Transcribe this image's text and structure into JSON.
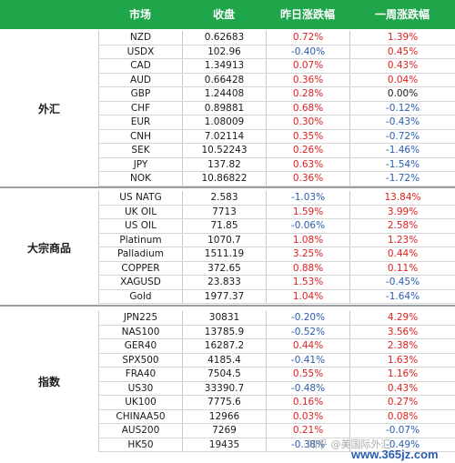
{
  "colors": {
    "header_bg": "#1fa64a",
    "up": "#e02020",
    "down": "#2a5db0",
    "neutral": "#1a1a1a"
  },
  "headers": {
    "market": "市场",
    "close": "收盘",
    "daily": "昨日涨跌幅",
    "weekly": "一周涨跌幅"
  },
  "groups": [
    {
      "label": "外汇",
      "rows": [
        {
          "market": "NZD",
          "close": "0.62683",
          "daily": "0.72%",
          "weekly": "1.39%"
        },
        {
          "market": "USDX",
          "close": "102.96",
          "daily": "-0.40%",
          "weekly": "0.45%"
        },
        {
          "market": "CAD",
          "close": "1.34913",
          "daily": "0.07%",
          "weekly": "0.43%"
        },
        {
          "market": "AUD",
          "close": "0.66428",
          "daily": "0.36%",
          "weekly": "0.04%"
        },
        {
          "market": "GBP",
          "close": "1.24408",
          "daily": "0.28%",
          "weekly": "0.00%"
        },
        {
          "market": "CHF",
          "close": "0.89881",
          "daily": "0.68%",
          "weekly": "-0.12%"
        },
        {
          "market": "EUR",
          "close": "1.08009",
          "daily": "0.30%",
          "weekly": "-0.43%"
        },
        {
          "market": "CNH",
          "close": "7.02114",
          "daily": "0.35%",
          "weekly": "-0.72%"
        },
        {
          "market": "SEK",
          "close": "10.52243",
          "daily": "0.26%",
          "weekly": "-1.46%"
        },
        {
          "market": "JPY",
          "close": "137.82",
          "daily": "0.63%",
          "weekly": "-1.54%"
        },
        {
          "market": "NOK",
          "close": "10.86822",
          "daily": "0.36%",
          "weekly": "-1.72%"
        }
      ]
    },
    {
      "label": "大宗商品",
      "rows": [
        {
          "market": "US NATG",
          "close": "2.583",
          "daily": "-1.03%",
          "weekly": "13.84%"
        },
        {
          "market": "UK OIL",
          "close": "7713",
          "daily": "1.59%",
          "weekly": "3.99%"
        },
        {
          "market": "US OIL",
          "close": "71.85",
          "daily": "-0.06%",
          "weekly": "2.58%"
        },
        {
          "market": "Platinum",
          "close": "1070.7",
          "daily": "1.08%",
          "weekly": "1.23%"
        },
        {
          "market": "Palladium",
          "close": "1511.19",
          "daily": "3.25%",
          "weekly": "0.44%"
        },
        {
          "market": "COPPER",
          "close": "372.65",
          "daily": "0.88%",
          "weekly": "0.11%"
        },
        {
          "market": "XAGUSD",
          "close": "23.833",
          "daily": "1.53%",
          "weekly": "-0.45%"
        },
        {
          "market": "Gold",
          "close": "1977.37",
          "daily": "1.04%",
          "weekly": "-1.64%"
        }
      ]
    },
    {
      "label": "指数",
      "rows": [
        {
          "market": "JPN225",
          "close": "30831",
          "daily": "-0.20%",
          "weekly": "4.29%"
        },
        {
          "market": "NAS100",
          "close": "13785.9",
          "daily": "-0.52%",
          "weekly": "3.56%"
        },
        {
          "market": "GER40",
          "close": "16287.2",
          "daily": "0.44%",
          "weekly": "2.38%"
        },
        {
          "market": "SPX500",
          "close": "4185.4",
          "daily": "-0.41%",
          "weekly": "1.63%"
        },
        {
          "market": "FRA40",
          "close": "7504.5",
          "daily": "0.55%",
          "weekly": "1.16%"
        },
        {
          "market": "US30",
          "close": "33390.7",
          "daily": "-0.48%",
          "weekly": "0.43%"
        },
        {
          "market": "UK100",
          "close": "7775.6",
          "daily": "0.16%",
          "weekly": "0.27%"
        },
        {
          "market": "CHINAA50",
          "close": "12966",
          "daily": "0.03%",
          "weekly": "0.08%"
        },
        {
          "market": "AUS200",
          "close": "7269",
          "daily": "0.21%",
          "weekly": "-0.07%"
        },
        {
          "market": "HK50",
          "close": "19435",
          "daily": "-0.38%",
          "weekly": "-0.49%"
        }
      ]
    }
  ],
  "watermark": {
    "line1": "知乎 @美国际外汇",
    "line2": "www.365jz.com"
  }
}
